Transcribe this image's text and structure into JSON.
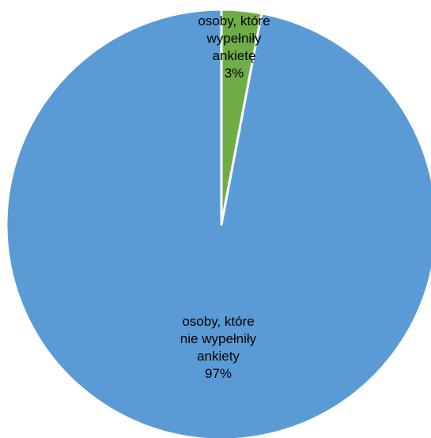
{
  "chart_data": {
    "type": "pie",
    "title": "",
    "legend": "none",
    "start_angle_deg": 0,
    "direction": "clockwise",
    "slices": [
      {
        "name": "osoby, które wypełniły ankietę",
        "label_lines": [
          "osoby, które",
          "wypełniły",
          "ankietę",
          "3%"
        ],
        "value": 3,
        "percent_label": "3%",
        "color": "#70AD47"
      },
      {
        "name": "osoby, które nie wypełniły ankiety",
        "label_lines": [
          "osoby, które",
          "nie wypełniły",
          "ankiety",
          "97%"
        ],
        "value": 97,
        "percent_label": "97%",
        "color": "#5B9BD5"
      }
    ],
    "slice_border_color": "#FFFFFF"
  }
}
